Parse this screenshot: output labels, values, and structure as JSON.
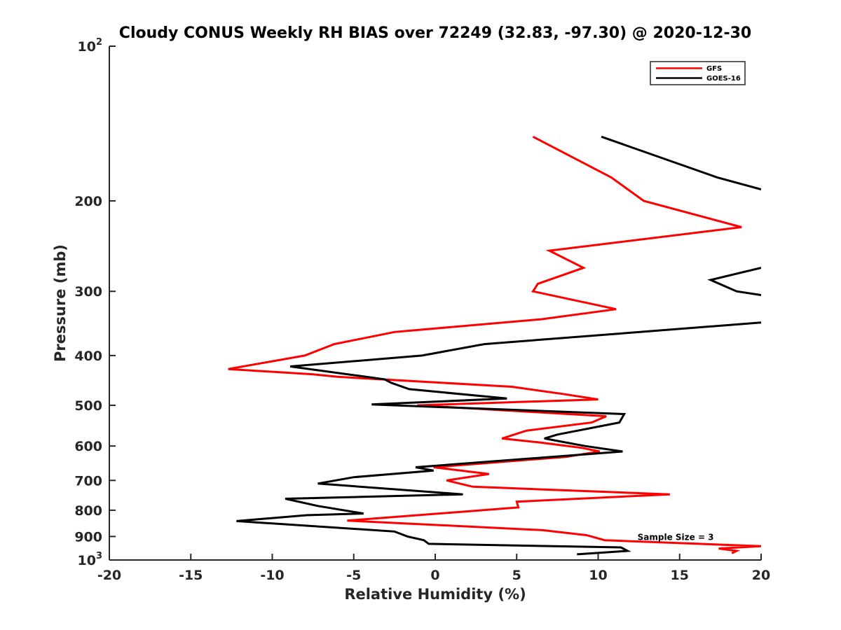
{
  "chart_data": {
    "type": "line",
    "title": "Cloudy CONUS Weekly RH BIAS over 72249 (32.83, -97.30) @ 2020-12-30",
    "xlabel": "Relative Humidity (%)",
    "ylabel": "Pressure (mb)",
    "xlim": [
      -20,
      20
    ],
    "ylim": [
      1000,
      100
    ],
    "yscale": "log",
    "y_reversed": true,
    "x_ticks": [
      "-20",
      "-15",
      "-10",
      "-5",
      "0",
      "5",
      "10",
      "15",
      "20"
    ],
    "y_ticks": [
      {
        "value": 100,
        "label": "10",
        "sup": "2"
      },
      {
        "value": 200,
        "label": "200",
        "sup": ""
      },
      {
        "value": 300,
        "label": "300",
        "sup": ""
      },
      {
        "value": 400,
        "label": "400",
        "sup": ""
      },
      {
        "value": 500,
        "label": "500",
        "sup": ""
      },
      {
        "value": 600,
        "label": "600",
        "sup": ""
      },
      {
        "value": 700,
        "label": "700",
        "sup": ""
      },
      {
        "value": 800,
        "label": "800",
        "sup": ""
      },
      {
        "value": 900,
        "label": "900",
        "sup": ""
      },
      {
        "value": 1000,
        "label": "10",
        "sup": "3"
      }
    ],
    "grid": false,
    "legend_position": "top-right",
    "series": [
      {
        "name": "GFS",
        "color": "#ff0000",
        "points": [
          [
            6.0,
            150
          ],
          [
            10.8,
            180
          ],
          [
            12.8,
            200
          ],
          [
            18.8,
            225
          ],
          [
            7.0,
            250
          ],
          [
            9.1,
            270
          ],
          [
            6.3,
            290
          ],
          [
            6.0,
            300
          ],
          [
            11.1,
            325
          ],
          [
            6.5,
            340
          ],
          [
            -2.5,
            360
          ],
          [
            -6.2,
            380
          ],
          [
            -8.0,
            400
          ],
          [
            -12.7,
            425
          ],
          [
            -7.5,
            435
          ],
          [
            -6.0,
            440
          ],
          [
            4.7,
            460
          ],
          [
            7.8,
            475
          ],
          [
            10.0,
            487
          ],
          [
            -1.1,
            500
          ],
          [
            10.5,
            525
          ],
          [
            9.6,
            540
          ],
          [
            5.6,
            560
          ],
          [
            4.1,
            580
          ],
          [
            6.3,
            590
          ],
          [
            9.0,
            605
          ],
          [
            10.1,
            615
          ],
          [
            8.0,
            630
          ],
          [
            -0.1,
            660
          ],
          [
            3.3,
            680
          ],
          [
            0.7,
            700
          ],
          [
            2.3,
            720
          ],
          [
            14.4,
            745
          ],
          [
            5.0,
            770
          ],
          [
            5.1,
            790
          ],
          [
            -5.4,
            838
          ],
          [
            6.6,
            875
          ],
          [
            9.3,
            895
          ],
          [
            10.4,
            915
          ],
          [
            20.0,
            940
          ],
          [
            17.4,
            950
          ],
          [
            18.5,
            960
          ],
          [
            18.2,
            970
          ]
        ]
      },
      {
        "name": "GOES-16",
        "color": "#000000",
        "points": [
          [
            10.2,
            150
          ],
          [
            17.3,
            180
          ],
          [
            20.0,
            190
          ],
          null,
          [
            20.0,
            270
          ],
          [
            16.9,
            285
          ],
          [
            18.5,
            300
          ],
          [
            20.0,
            305
          ],
          null,
          [
            20.0,
            345
          ],
          [
            3.0,
            380
          ],
          [
            -0.8,
            400
          ],
          [
            -8.9,
            420
          ],
          [
            -3.1,
            445
          ],
          [
            -2.7,
            452
          ],
          [
            -1.6,
            465
          ],
          [
            4.4,
            485
          ],
          [
            -3.9,
            498
          ],
          [
            11.6,
            520
          ],
          [
            11.3,
            540
          ],
          [
            7.5,
            570
          ],
          [
            6.7,
            580
          ],
          [
            9.2,
            600
          ],
          [
            11.5,
            615
          ],
          [
            -1.2,
            660
          ],
          [
            -0.1,
            670
          ],
          [
            -5.0,
            690
          ],
          [
            -7.2,
            710
          ],
          [
            1.7,
            745
          ],
          [
            -9.2,
            760
          ],
          [
            -7.2,
            785
          ],
          [
            -4.4,
            812
          ],
          [
            -7.9,
            818
          ],
          [
            -12.2,
            840
          ],
          [
            -2.5,
            880
          ],
          [
            -1.7,
            900
          ],
          [
            -0.7,
            915
          ],
          [
            -0.4,
            930
          ],
          [
            11.4,
            945
          ],
          [
            11.8,
            960
          ],
          [
            8.7,
            975
          ]
        ]
      }
    ],
    "annotations": [
      {
        "text": "Sample Size = 3",
        "x": 12.5,
        "y": 900
      }
    ]
  }
}
